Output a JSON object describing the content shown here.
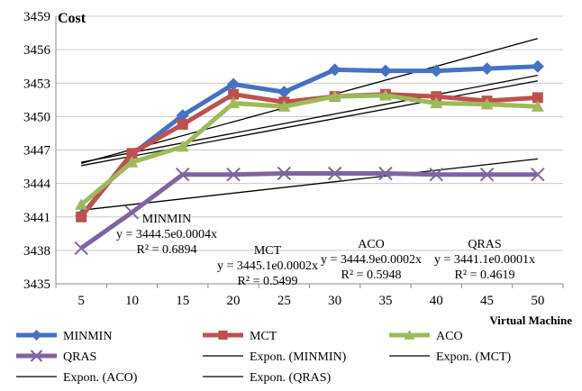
{
  "chart_data": {
    "type": "line",
    "title": "",
    "ylabel": "Cost",
    "xlabel": "Virtual Machine",
    "categories": [
      "5",
      "10",
      "15",
      "20",
      "25",
      "30",
      "35",
      "40",
      "45",
      "50"
    ],
    "ylim": [
      3435,
      3459
    ],
    "yticks": [
      "3435",
      "3438",
      "3441",
      "3444",
      "3447",
      "3450",
      "3453",
      "3456",
      "3459"
    ],
    "grid": true,
    "legend_position": "bottom",
    "series": [
      {
        "name": "MINMIN",
        "color": "#4472C4",
        "marker": "diamond",
        "values": [
          3441.1,
          3446.6,
          3450.1,
          3452.9,
          3452.2,
          3454.2,
          3454.1,
          3454.1,
          3454.3,
          3454.5
        ]
      },
      {
        "name": "MCT",
        "color": "#C0504D",
        "marker": "square",
        "values": [
          3441.0,
          3446.7,
          3449.3,
          3452.0,
          3451.3,
          3451.8,
          3452.0,
          3451.8,
          3451.4,
          3451.7
        ]
      },
      {
        "name": "ACO",
        "color": "#9BBB59",
        "marker": "triangle",
        "values": [
          3442.1,
          3445.9,
          3447.3,
          3451.2,
          3450.9,
          3451.8,
          3451.9,
          3451.2,
          3451.1,
          3450.9
        ]
      },
      {
        "name": "QRAS",
        "color": "#8064A2",
        "marker": "x",
        "values": [
          3438.2,
          3441.4,
          3444.8,
          3444.8,
          3444.9,
          3444.9,
          3444.9,
          3444.8,
          3444.8,
          3444.8
        ]
      }
    ],
    "trendlines": [
      {
        "name": "Expon. (MINMIN)",
        "color": "#000000",
        "values": [
          3445.8,
          3457.0
        ]
      },
      {
        "name": "Expon. (MCT)",
        "color": "#000000",
        "values": [
          3445.9,
          3453.7
        ]
      },
      {
        "name": "Expon. (ACO)",
        "color": "#000000",
        "values": [
          3445.6,
          3453.2
        ]
      },
      {
        "name": "Expon. (QRAS)",
        "color": "#000000",
        "values": [
          3441.6,
          3446.2
        ]
      }
    ],
    "annotations": [
      {
        "title": "MINMIN",
        "equation": "y = 3444.5e0.0004x",
        "r2": "R² = 0.6894"
      },
      {
        "title": "MCT",
        "equation": "y = 3445.1e0.0002x",
        "r2": "R² = 0.5499"
      },
      {
        "title": "ACO",
        "equation": "y = 3444.9e0.0002x",
        "r2": "R² = 0.5948"
      },
      {
        "title": "QRAS",
        "equation": "y = 3441.1e0.0001x",
        "r2": "R² = 0.4619"
      }
    ],
    "legend": [
      {
        "label": "MINMIN",
        "color": "#4472C4",
        "marker": "diamond",
        "thick": true
      },
      {
        "label": "MCT",
        "color": "#C0504D",
        "marker": "square",
        "thick": true
      },
      {
        "label": "ACO",
        "color": "#9BBB59",
        "marker": "triangle",
        "thick": true
      },
      {
        "label": "QRAS",
        "color": "#8064A2",
        "marker": "x",
        "thick": true
      },
      {
        "label": "Expon. (MINMIN)",
        "color": "#000000",
        "marker": "none",
        "thick": false
      },
      {
        "label": "Expon. (MCT)",
        "color": "#000000",
        "marker": "none",
        "thick": false
      },
      {
        "label": "Expon. (ACO)",
        "color": "#000000",
        "marker": "none",
        "thick": false
      },
      {
        "label": "Expon. (QRAS)",
        "color": "#000000",
        "marker": "none",
        "thick": false
      }
    ]
  }
}
